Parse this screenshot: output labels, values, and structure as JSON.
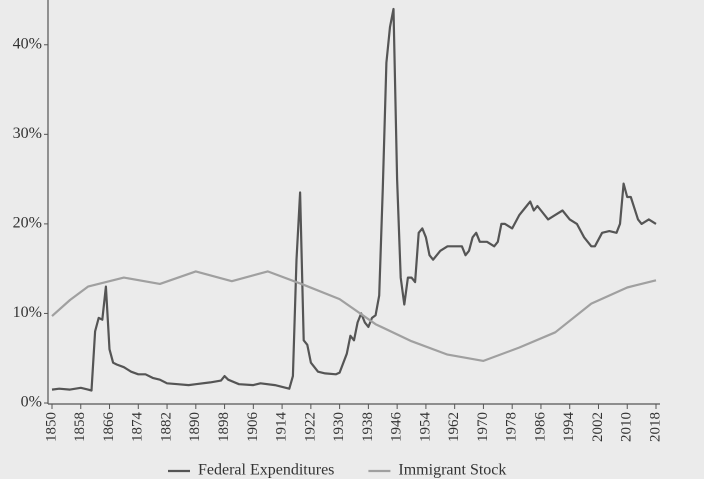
{
  "chart_data": {
    "type": "line",
    "xlim": [
      1850,
      2018
    ],
    "xticks": [
      1850,
      1858,
      1866,
      1874,
      1882,
      1890,
      1898,
      1906,
      1914,
      1922,
      1930,
      1938,
      1946,
      1954,
      1962,
      1970,
      1978,
      1986,
      1994,
      2002,
      2010,
      2018
    ],
    "ylim": [
      0,
      45
    ],
    "yticks": [
      {
        "value": 0,
        "label": "0%"
      },
      {
        "value": 10,
        "label": "10%"
      },
      {
        "value": 20,
        "label": "20%"
      },
      {
        "value": 30,
        "label": "30%"
      },
      {
        "value": 40,
        "label": "40%"
      }
    ],
    "legend": "bottom",
    "series": [
      {
        "name": "Federal Expenditures",
        "color": "#555555",
        "x": [
          1850,
          1852,
          1855,
          1858,
          1860,
          1861,
          1862,
          1863,
          1864,
          1865,
          1866,
          1867,
          1868,
          1870,
          1872,
          1874,
          1876,
          1878,
          1880,
          1882,
          1885,
          1888,
          1890,
          1894,
          1897,
          1898,
          1899,
          1902,
          1906,
          1908,
          1912,
          1916,
          1917,
          1918,
          1919,
          1920,
          1921,
          1922,
          1924,
          1926,
          1929,
          1930,
          1932,
          1933,
          1934,
          1935,
          1936,
          1937,
          1938,
          1939,
          1940,
          1941,
          1942,
          1943,
          1944,
          1945,
          1946,
          1947,
          1948,
          1949,
          1950,
          1951,
          1952,
          1953,
          1954,
          1955,
          1956,
          1958,
          1960,
          1962,
          1964,
          1965,
          1966,
          1967,
          1968,
          1969,
          1971,
          1973,
          1974,
          1975,
          1976,
          1978,
          1980,
          1982,
          1983,
          1984,
          1985,
          1986,
          1988,
          1990,
          1992,
          1994,
          1996,
          1998,
          2000,
          2001,
          2003,
          2005,
          2007,
          2008,
          2009,
          2010,
          2011,
          2013,
          2014,
          2016,
          2018
        ],
        "values": [
          1.5,
          1.6,
          1.5,
          1.7,
          1.5,
          1.4,
          8,
          9.5,
          9.3,
          13,
          6,
          4.5,
          4.3,
          4,
          3.5,
          3.2,
          3.2,
          2.8,
          2.6,
          2.2,
          2.1,
          2.0,
          2.1,
          2.3,
          2.5,
          3.0,
          2.6,
          2.1,
          2.0,
          2.2,
          2.0,
          1.6,
          3,
          16,
          23.5,
          7,
          6.5,
          4.5,
          3.5,
          3.3,
          3.2,
          3.4,
          5.5,
          7.5,
          7,
          9,
          10,
          9,
          8.5,
          9.5,
          9.8,
          12,
          24,
          38,
          42,
          44,
          25,
          14,
          11,
          14,
          14,
          13.5,
          19,
          19.5,
          18.5,
          16.5,
          16,
          17,
          17.5,
          17.5,
          17.5,
          16.5,
          17,
          18.5,
          19,
          18,
          18,
          17.5,
          18,
          20,
          20,
          19.5,
          21,
          22,
          22.5,
          21.5,
          22,
          21.5,
          20.5,
          21,
          21.5,
          20.5,
          20,
          18.5,
          17.5,
          17.5,
          19,
          19.2,
          19,
          20,
          24.5,
          23,
          23,
          20.5,
          20,
          20.5,
          20
        ]
      },
      {
        "name": "Immigrant Stock",
        "color": "#a0a0a0",
        "x": [
          1850,
          1855,
          1860,
          1870,
          1880,
          1890,
          1900,
          1910,
          1920,
          1930,
          1940,
          1950,
          1960,
          1970,
          1980,
          1990,
          2000,
          2010,
          2018
        ],
        "values": [
          9.7,
          11.5,
          13,
          14,
          13.3,
          14.7,
          13.6,
          14.7,
          13.2,
          11.6,
          8.8,
          6.9,
          5.4,
          4.7,
          6.2,
          7.9,
          11.1,
          12.9,
          13.7
        ]
      }
    ]
  }
}
